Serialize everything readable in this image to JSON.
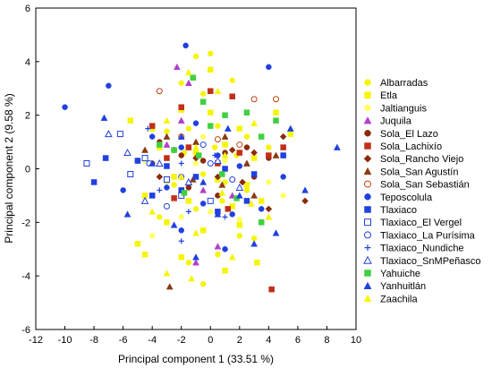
{
  "chart_data": {
    "type": "scatter",
    "xlabel": "Principal component 1 (33.51 %)",
    "ylabel": "Principal component 2 (9.58 %)",
    "xlim": [
      -12,
      10
    ],
    "ylim": [
      -6,
      6
    ],
    "xticks": [
      "-12",
      "-10",
      "-8",
      "-6",
      "-4",
      "-2",
      "0",
      "2",
      "4",
      "6",
      "8",
      "10"
    ],
    "yticks": [
      "-6",
      "-4",
      "-2",
      "0",
      "2",
      "4",
      "6"
    ],
    "grid": false,
    "legend_position": "right",
    "series": [
      {
        "name": "Albarradas",
        "marker": "circle",
        "filled": true,
        "color": "#f5f50a",
        "points": [
          [
            -1,
            4.2
          ],
          [
            0,
            4.3
          ],
          [
            -2,
            3.2
          ],
          [
            -0.5,
            2.8
          ],
          [
            1.5,
            3.3
          ],
          [
            -1.5,
            1.5
          ],
          [
            0.5,
            1.6
          ],
          [
            -3,
            1.4
          ],
          [
            2.5,
            1.2
          ],
          [
            -1.8,
            0.6
          ],
          [
            0.3,
            0.8
          ],
          [
            1.8,
            0.5
          ],
          [
            -0.5,
            -0.2
          ],
          [
            -2.5,
            -0.6
          ],
          [
            1,
            -0.5
          ],
          [
            2.5,
            -0.8
          ],
          [
            -1,
            -1.5
          ],
          [
            0.8,
            -1.2
          ],
          [
            -3.5,
            -1.8
          ],
          [
            2,
            -2.5
          ],
          [
            -1.5,
            -3.5
          ],
          [
            0.5,
            -3.2
          ],
          [
            3,
            -2.6
          ],
          [
            -0.5,
            -4.3
          ],
          [
            4,
            0.8
          ]
        ]
      },
      {
        "name": "Etla",
        "marker": "square",
        "filled": true,
        "color": "#f5f50a",
        "points": [
          [
            -4,
            1.5
          ],
          [
            -2,
            2.2
          ],
          [
            0,
            2.1
          ],
          [
            2,
            1.5
          ],
          [
            -3.5,
            0.8
          ],
          [
            -1,
            0.6
          ],
          [
            1,
            0.9
          ],
          [
            3,
            0.4
          ],
          [
            -2.5,
            -0.3
          ],
          [
            0.5,
            -0.4
          ],
          [
            2.5,
            -0.6
          ],
          [
            -4.5,
            -1
          ],
          [
            -1.5,
            -1.2
          ],
          [
            1.5,
            -1.4
          ],
          [
            3.5,
            -1.2
          ],
          [
            -3,
            -2
          ],
          [
            -0.5,
            -2.3
          ],
          [
            2,
            -2.1
          ],
          [
            -5,
            -2.8
          ],
          [
            -2,
            -3.3
          ],
          [
            1,
            -3.8
          ],
          [
            3.2,
            -3.5
          ],
          [
            -4.5,
            -3.2
          ],
          [
            4.5,
            2.1
          ],
          [
            5.5,
            1.3
          ],
          [
            -5.5,
            1.8
          ],
          [
            0,
            3.7
          ]
        ]
      },
      {
        "name": "Jaltianguis",
        "marker": "circle",
        "filled": true,
        "color": "#ffff66",
        "points": [
          [
            -4.5,
            0.3
          ],
          [
            -3,
            -0.5
          ],
          [
            -1,
            0.2
          ],
          [
            1,
            0.3
          ],
          [
            3,
            -0.2
          ],
          [
            -2,
            -1.8
          ],
          [
            0,
            -1.6
          ],
          [
            2,
            -1.9
          ],
          [
            4,
            -0.5
          ],
          [
            -4,
            -2.5
          ],
          [
            5,
            -1
          ],
          [
            -0.5,
            1.2
          ]
        ]
      },
      {
        "name": "Juquila",
        "marker": "triangle",
        "filled": true,
        "color": "#b040c8",
        "points": [
          [
            -2.3,
            3.8
          ],
          [
            -1.5,
            3.2
          ],
          [
            -3,
            0.9
          ],
          [
            -0.5,
            -0.8
          ],
          [
            1.5,
            -1
          ],
          [
            -1,
            -3.5
          ],
          [
            0.5,
            -2.9
          ],
          [
            2.5,
            0.2
          ],
          [
            -2,
            1.8
          ]
        ]
      },
      {
        "name": "Sola_El Lazo",
        "marker": "circle",
        "filled": true,
        "color": "#8b2a0a",
        "points": [
          [
            -3.5,
            1
          ],
          [
            -2,
            0.5
          ],
          [
            -0.5,
            0.3
          ],
          [
            1,
            0.6
          ],
          [
            2.5,
            0.8
          ],
          [
            -4,
            0.2
          ],
          [
            3,
            -0.3
          ],
          [
            -1.5,
            -0.7
          ],
          [
            0.5,
            -1
          ],
          [
            4,
            0.4
          ]
        ]
      },
      {
        "name": "Sola_Lachixío",
        "marker": "square",
        "filled": true,
        "color": "#c03018",
        "points": [
          [
            -2,
            2.3
          ],
          [
            0,
            2.9
          ],
          [
            1.5,
            2.7
          ],
          [
            -3,
            0.4
          ],
          [
            -1.5,
            0.8
          ],
          [
            0.5,
            0.2
          ],
          [
            2,
            0.6
          ],
          [
            4,
            0.5
          ],
          [
            4.2,
            -4.5
          ],
          [
            -2.5,
            -1.1
          ],
          [
            1.2,
            -1.5
          ],
          [
            5,
            0.8
          ],
          [
            -4,
            1.6
          ]
        ]
      },
      {
        "name": "Sola_Rancho Viejo",
        "marker": "diamond",
        "filled": true,
        "color": "#8b2a0a",
        "points": [
          [
            -1,
            0.4
          ],
          [
            1.5,
            0.7
          ],
          [
            3,
            0.6
          ],
          [
            -2.5,
            0.7
          ],
          [
            0.5,
            -0.3
          ],
          [
            2.2,
            -0.5
          ],
          [
            5,
            1.2
          ],
          [
            -3.5,
            -0.3
          ],
          [
            6.5,
            -1.2
          ],
          [
            4,
            -1.5
          ]
        ]
      },
      {
        "name": "Sola_San Agustín",
        "marker": "triangle",
        "filled": true,
        "color": "#8b3a10",
        "points": [
          [
            -3,
            1.2
          ],
          [
            -1,
            1
          ],
          [
            1,
            1.2
          ],
          [
            2.5,
            0.2
          ],
          [
            -2.8,
            -4.4
          ],
          [
            -1.2,
            -0.4
          ],
          [
            0.8,
            -0.6
          ],
          [
            3,
            -1
          ],
          [
            4.5,
            0.5
          ],
          [
            -4.5,
            0.7
          ]
        ]
      },
      {
        "name": "Sola_San Sebastián",
        "marker": "circle",
        "filled": false,
        "color": "#c04010",
        "points": [
          [
            -3.5,
            2.9
          ],
          [
            3,
            2.6
          ],
          [
            4.5,
            2.6
          ],
          [
            -2,
            1.2
          ],
          [
            0.5,
            1.1
          ],
          [
            2,
            0.9
          ]
        ]
      },
      {
        "name": "Teposcolula",
        "marker": "circle",
        "filled": true,
        "color": "#2040e0",
        "points": [
          [
            -10,
            2.3
          ],
          [
            -7,
            3.1
          ],
          [
            -1.7,
            4.6
          ],
          [
            4,
            3.8
          ],
          [
            -4,
            1.2
          ],
          [
            -2,
            0.8
          ],
          [
            0.5,
            0.5
          ],
          [
            -5,
            0.3
          ],
          [
            2,
            0.1
          ],
          [
            -3,
            -0.7
          ],
          [
            -0.5,
            -1.3
          ],
          [
            1.5,
            -1.7
          ],
          [
            -2,
            -2.3
          ],
          [
            3.5,
            -1.5
          ],
          [
            -6,
            -0.8
          ],
          [
            5,
            -0.3
          ],
          [
            1,
            -3
          ],
          [
            -1,
            1.7
          ]
        ]
      },
      {
        "name": "Tlaxiaco",
        "marker": "square",
        "filled": true,
        "color": "#2040e0",
        "points": [
          [
            -7.2,
            0.4
          ],
          [
            -5,
            0.3
          ],
          [
            -3,
            0.1
          ],
          [
            -1,
            -0.3
          ],
          [
            1,
            0
          ],
          [
            3,
            -0.2
          ],
          [
            -4,
            -1
          ],
          [
            -2,
            -0.8
          ],
          [
            0.5,
            -1.6
          ],
          [
            -8,
            -0.5
          ],
          [
            5,
            0.5
          ],
          [
            2.5,
            -1.2
          ]
        ]
      },
      {
        "name": "Tlaxiaco_El Vergel",
        "marker": "square",
        "filled": false,
        "color": "#2040e0",
        "points": [
          [
            -6.2,
            1.3
          ],
          [
            -4.5,
            0.4
          ],
          [
            -3,
            -0.4
          ],
          [
            -5.5,
            -0.2
          ],
          [
            -2,
            -1
          ],
          [
            0,
            -1.2
          ],
          [
            -8.5,
            0.2
          ]
        ]
      },
      {
        "name": "Tlaxiaco_La Purísima",
        "marker": "circle",
        "filled": false,
        "color": "#2040e0",
        "points": [
          [
            -4.2,
            0.2
          ],
          [
            -2,
            -0.3
          ],
          [
            0,
            0.2
          ],
          [
            1.5,
            -0.4
          ],
          [
            -3,
            -1.4
          ],
          [
            -0.5,
            0.9
          ]
        ]
      },
      {
        "name": "Tlaxiaco_Nundiche",
        "marker": "plus",
        "filled": true,
        "color": "#2040e0",
        "points": [
          [
            -4.3,
            1.5
          ],
          [
            -2,
            0.2
          ],
          [
            -1.5,
            -1.6
          ],
          [
            1,
            -1.8
          ],
          [
            -2,
            -2.7
          ],
          [
            0.3,
            0.5
          ],
          [
            -3.5,
            -0.8
          ]
        ]
      },
      {
        "name": "Tlaxiaco_SnMPeñasco",
        "marker": "triangle",
        "filled": false,
        "color": "#2040e0",
        "points": [
          [
            -5.7,
            0.6
          ],
          [
            -3.5,
            0.2
          ],
          [
            -1.5,
            -0.5
          ],
          [
            0.5,
            0.3
          ],
          [
            2,
            -0.7
          ],
          [
            -7,
            1.3
          ],
          [
            -4.5,
            -1.2
          ]
        ]
      },
      {
        "name": "Yahuiche",
        "marker": "square",
        "filled": true,
        "color": "#40d040",
        "points": [
          [
            -1.2,
            3.4
          ],
          [
            -0.5,
            2.5
          ],
          [
            1,
            2
          ],
          [
            2.5,
            2.1
          ],
          [
            -2.5,
            0.7
          ],
          [
            -0.8,
            0.5
          ],
          [
            0.8,
            -0.2
          ],
          [
            3.5,
            1.2
          ],
          [
            -1.8,
            -0.9
          ],
          [
            1.8,
            -1.1
          ],
          [
            3.5,
            -2
          ],
          [
            -3.5,
            0.9
          ],
          [
            4.5,
            1.8
          ],
          [
            0,
            1.6
          ]
        ]
      },
      {
        "name": "Yanhuitlán",
        "marker": "triangle",
        "filled": true,
        "color": "#2040e0",
        "points": [
          [
            -7.3,
            1.9
          ],
          [
            -2,
            1.2
          ],
          [
            1.2,
            1.5
          ],
          [
            5.5,
            1.5
          ],
          [
            8.7,
            0.8
          ],
          [
            -4,
            0.2
          ],
          [
            -0.5,
            -0.5
          ],
          [
            2,
            -1
          ],
          [
            6.5,
            -0.8
          ],
          [
            -1,
            -3.3
          ],
          [
            -2.5,
            -2.1
          ],
          [
            4.5,
            -2.4
          ],
          [
            -5.7,
            -1.7
          ],
          [
            3,
            -2.8
          ],
          [
            0.5,
            -1.7
          ]
        ]
      },
      {
        "name": "Zaachila",
        "marker": "triangle",
        "filled": true,
        "color": "#f5f50a",
        "points": [
          [
            -1.5,
            3.6
          ],
          [
            0.5,
            2.9
          ],
          [
            -3,
            1.8
          ],
          [
            -1,
            0.8
          ],
          [
            1,
            0.5
          ],
          [
            3,
            1.7
          ],
          [
            -2,
            -0.3
          ],
          [
            0.8,
            -0.9
          ],
          [
            2.8,
            -1.3
          ],
          [
            -4,
            -1.6
          ],
          [
            -1,
            -2.4
          ],
          [
            1.5,
            -3.3
          ],
          [
            -3,
            -3.9
          ],
          [
            -1.3,
            -4.1
          ],
          [
            4,
            -1.8
          ]
        ]
      }
    ]
  }
}
